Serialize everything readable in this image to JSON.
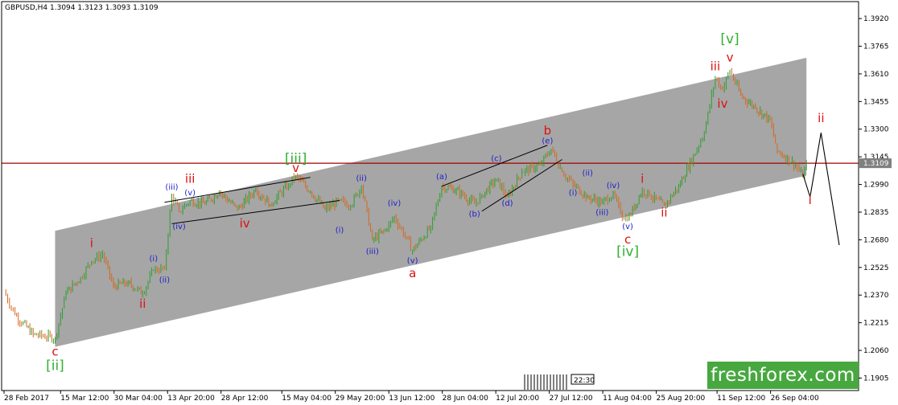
{
  "title": "GBPUSD,H4  1.3094 1.3123 1.3093 1.3109",
  "logo_text": "freshforex.com",
  "scrollbar_label": "22:30",
  "colors": {
    "up_candle": "#2e9e2e",
    "down_candle": "#d2691e",
    "channel": "#a6a6a6",
    "price_line": "#a30000",
    "price_badge": "#808080",
    "wave_red": "#dd1111",
    "wave_blue": "#2020cc",
    "wave_green": "#30b030",
    "logo_bg": "#47a83f"
  },
  "chart_data": {
    "type": "candlestick",
    "symbol": "GBPUSD",
    "timeframe": "H4",
    "ohlc_header": {
      "open": 1.3094,
      "high": 1.3123,
      "low": 1.3093,
      "close": 1.3109
    },
    "current_price": 1.3109,
    "current_price_label": "1.3109",
    "ylim": [
      1.1835,
      1.4015
    ],
    "y_ticks": [
      1.392,
      1.3765,
      1.361,
      1.3455,
      1.33,
      1.3145,
      1.299,
      1.2835,
      1.268,
      1.2525,
      1.237,
      1.2215,
      1.206,
      1.1905
    ],
    "y_tick_labels": [
      "1.3920",
      "1.3765",
      "1.3610",
      "1.3455",
      "1.3300",
      "1.3145",
      "1.2990",
      "1.2835",
      "1.2680",
      "1.2525",
      "1.2370",
      "1.2215",
      "1.2060",
      "1.1905"
    ],
    "x_tick_labels": [
      "28 Feb 2017",
      "15 Mar 12:00",
      "30 Mar 04:00",
      "13 Apr 20:00",
      "28 Apr 12:00",
      "15 May 04:00",
      "29 May 20:00",
      "13 Jun 12:00",
      "28 Jun 04:00",
      "12 Jul 20:00",
      "27 Jul 12:00",
      "11 Aug 04:00",
      "25 Aug 20:00",
      "11 Sep 12:00",
      "26 Sep 04:00"
    ],
    "price_path": [
      [
        "28 Feb 2017",
        1.239
      ],
      [
        "03 Mar",
        1.226
      ],
      [
        "08 Mar",
        1.215
      ],
      [
        "14 Mar",
        1.213
      ],
      [
        "17 Mar",
        1.238
      ],
      [
        "21 Mar",
        1.247
      ],
      [
        "24 Mar",
        1.256
      ],
      [
        "27 Mar",
        1.26
      ],
      [
        "30 Mar",
        1.242
      ],
      [
        "03 Apr",
        1.244
      ],
      [
        "07 Apr",
        1.238
      ],
      [
        "10 Apr",
        1.251
      ],
      [
        "13 Apr",
        1.252
      ],
      [
        "15 Apr",
        1.293
      ],
      [
        "17 Apr",
        1.284
      ],
      [
        "20 Apr",
        1.29
      ],
      [
        "24 Apr",
        1.288
      ],
      [
        "28 Apr",
        1.295
      ],
      [
        "03 May",
        1.285
      ],
      [
        "08 May",
        1.296
      ],
      [
        "12 May",
        1.288
      ],
      [
        "17 May",
        1.299
      ],
      [
        "19 May",
        1.304
      ],
      [
        "23 May",
        1.295
      ],
      [
        "27 May",
        1.285
      ],
      [
        "31 May",
        1.29
      ],
      [
        "03 Jun",
        1.287
      ],
      [
        "06 Jun",
        1.298
      ],
      [
        "09 Jun",
        1.268
      ],
      [
        "13 Jun",
        1.274
      ],
      [
        "15 Jun",
        1.281
      ],
      [
        "18 Jun",
        1.27
      ],
      [
        "20 Jun",
        1.262
      ],
      [
        "25 Jun",
        1.275
      ],
      [
        "28 Jun",
        1.298
      ],
      [
        "02 Jul",
        1.296
      ],
      [
        "07 Jul",
        1.288
      ],
      [
        "09 Jul",
        1.293
      ],
      [
        "13 Jul",
        1.302
      ],
      [
        "16 Jul",
        1.292
      ],
      [
        "20 Jul",
        1.306
      ],
      [
        "25 Jul",
        1.31
      ],
      [
        "28 Jul",
        1.319
      ],
      [
        "31 Jul",
        1.306
      ],
      [
        "03 Aug",
        1.299
      ],
      [
        "07 Aug",
        1.292
      ],
      [
        "11 Aug",
        1.289
      ],
      [
        "14 Aug",
        1.294
      ],
      [
        "16 Aug",
        1.283
      ],
      [
        "18 Aug",
        1.279
      ],
      [
        "22 Aug",
        1.296
      ],
      [
        "24 Aug",
        1.293
      ],
      [
        "28 Aug",
        1.287
      ],
      [
        "01 Sep",
        1.298
      ],
      [
        "05 Sep",
        1.315
      ],
      [
        "08 Sep",
        1.328
      ],
      [
        "11 Sep",
        1.359
      ],
      [
        "13 Sep",
        1.352
      ],
      [
        "15 Sep",
        1.363
      ],
      [
        "18 Sep",
        1.349
      ],
      [
        "22 Sep",
        1.342
      ],
      [
        "26 Sep",
        1.335
      ],
      [
        "28 Sep",
        1.318
      ],
      [
        "03 Oct",
        1.31
      ],
      [
        "05 Oct",
        1.303
      ],
      [
        "06 Oct",
        1.3109
      ]
    ],
    "channel": {
      "lower": [
        [
          "14 Mar",
          1.208
        ],
        [
          "06 Oct",
          1.304
        ]
      ],
      "upper": [
        [
          "14 Mar",
          1.273
        ],
        [
          "06 Oct",
          1.37
        ]
      ]
    },
    "trend_lines": [
      {
        "from": [
          "13 Apr",
          1.289
        ],
        "to": [
          "23 May",
          1.303
        ]
      },
      {
        "from": [
          "15 Apr",
          1.277
        ],
        "to": [
          "31 May",
          1.29
        ]
      },
      {
        "from": [
          "28 Jun",
          1.298
        ],
        "to": [
          "27 Jul",
          1.321
        ]
      },
      {
        "from": [
          "09 Jul",
          1.284
        ],
        "to": [
          "31 Jul",
          1.313
        ]
      }
    ],
    "forecast_path": [
      [
        "05 Oct",
        1.305
      ],
      [
        "07 Oct",
        1.292
      ],
      [
        "10 Oct",
        1.328
      ],
      [
        "15 Oct",
        1.265
      ]
    ],
    "wave_labels": [
      {
        "text": "c",
        "level": "minor",
        "color": "red",
        "at": [
          "14 Mar",
          1.203
        ]
      },
      {
        "text": "[ii]",
        "level": "intermediate",
        "color": "green",
        "at": [
          "14 Mar",
          1.195
        ]
      },
      {
        "text": "i",
        "level": "minor",
        "color": "red",
        "at": [
          "24 Mar",
          1.264
        ]
      },
      {
        "text": "ii",
        "level": "minor",
        "color": "red",
        "at": [
          "07 Apr",
          1.23
        ]
      },
      {
        "text": "(i)",
        "level": "minute",
        "color": "blue",
        "at": [
          "10 Apr",
          1.256
        ]
      },
      {
        "text": "(ii)",
        "level": "minute",
        "color": "blue",
        "at": [
          "13 Apr",
          1.244
        ]
      },
      {
        "text": "(iii)",
        "level": "minute",
        "color": "blue",
        "at": [
          "15 Apr",
          1.296
        ]
      },
      {
        "text": "iii",
        "level": "minor",
        "color": "red",
        "at": [
          "20 Apr",
          1.3
        ]
      },
      {
        "text": "(v)",
        "level": "minute",
        "color": "blue",
        "at": [
          "20 Apr",
          1.293
        ]
      },
      {
        "text": "(iv)",
        "level": "minute",
        "color": "blue",
        "at": [
          "17 Apr",
          1.274
        ]
      },
      {
        "text": "iv",
        "level": "minor",
        "color": "red",
        "at": [
          "05 May",
          1.275
        ]
      },
      {
        "text": "[iii]",
        "level": "intermediate",
        "color": "green",
        "at": [
          "19 May",
          1.311
        ]
      },
      {
        "text": "v",
        "level": "minor",
        "color": "red",
        "at": [
          "19 May",
          1.306
        ]
      },
      {
        "text": "(i)",
        "level": "minute",
        "color": "blue",
        "at": [
          "31 May",
          1.272
        ]
      },
      {
        "text": "(ii)",
        "level": "minute",
        "color": "blue",
        "at": [
          "06 Jun",
          1.301
        ]
      },
      {
        "text": "(iii)",
        "level": "minute",
        "color": "blue",
        "at": [
          "09 Jun",
          1.26
        ]
      },
      {
        "text": "(iv)",
        "level": "minute",
        "color": "blue",
        "at": [
          "15 Jun",
          1.287
        ]
      },
      {
        "text": "(v)",
        "level": "minute",
        "color": "blue",
        "at": [
          "20 Jun",
          1.255
        ]
      },
      {
        "text": "a",
        "level": "minor",
        "color": "red",
        "at": [
          "20 Jun",
          1.247
        ]
      },
      {
        "text": "(a)",
        "level": "minute",
        "color": "blue",
        "at": [
          "28 Jun",
          1.302
        ]
      },
      {
        "text": "(b)",
        "level": "minute",
        "color": "blue",
        "at": [
          "07 Jul",
          1.281
        ]
      },
      {
        "text": "(c)",
        "level": "minute",
        "color": "blue",
        "at": [
          "13 Jul",
          1.312
        ]
      },
      {
        "text": "(d)",
        "level": "minute",
        "color": "blue",
        "at": [
          "16 Jul",
          1.287
        ]
      },
      {
        "text": "(e)",
        "level": "minute",
        "color": "blue",
        "at": [
          "27 Jul",
          1.322
        ]
      },
      {
        "text": "b",
        "level": "minor",
        "color": "red",
        "at": [
          "27 Jul",
          1.327
        ]
      },
      {
        "text": "(i)",
        "level": "minute",
        "color": "blue",
        "at": [
          "03 Aug",
          1.293
        ]
      },
      {
        "text": "(ii)",
        "level": "minute",
        "color": "blue",
        "at": [
          "07 Aug",
          1.304
        ]
      },
      {
        "text": "(iii)",
        "level": "minute",
        "color": "blue",
        "at": [
          "11 Aug",
          1.282
        ]
      },
      {
        "text": "(iv)",
        "level": "minute",
        "color": "blue",
        "at": [
          "14 Aug",
          1.297
        ]
      },
      {
        "text": "(v)",
        "level": "minute",
        "color": "blue",
        "at": [
          "18 Aug",
          1.274
        ]
      },
      {
        "text": "c",
        "level": "minor",
        "color": "red",
        "at": [
          "18 Aug",
          1.266
        ]
      },
      {
        "text": "[iv]",
        "level": "intermediate",
        "color": "green",
        "at": [
          "18 Aug",
          1.259
        ]
      },
      {
        "text": "i",
        "level": "minor",
        "color": "red",
        "at": [
          "22 Aug",
          1.3
        ]
      },
      {
        "text": "ii",
        "level": "minor",
        "color": "red",
        "at": [
          "28 Aug",
          1.281
        ]
      },
      {
        "text": "iii",
        "level": "minor",
        "color": "red",
        "at": [
          "11 Sep",
          1.363
        ]
      },
      {
        "text": "[v]",
        "level": "intermediate",
        "color": "green",
        "at": [
          "15 Sep",
          1.378
        ]
      },
      {
        "text": "v",
        "level": "minor",
        "color": "red",
        "at": [
          "15 Sep",
          1.368
        ]
      },
      {
        "text": "iv",
        "level": "minor",
        "color": "red",
        "at": [
          "13 Sep",
          1.342
        ]
      },
      {
        "text": "i",
        "level": "minor",
        "color": "red",
        "at": [
          "07 Oct",
          1.288
        ]
      },
      {
        "text": "ii",
        "level": "minor",
        "color": "red",
        "at": [
          "10 Oct",
          1.334
        ]
      }
    ],
    "grid": false,
    "legend": "none"
  }
}
